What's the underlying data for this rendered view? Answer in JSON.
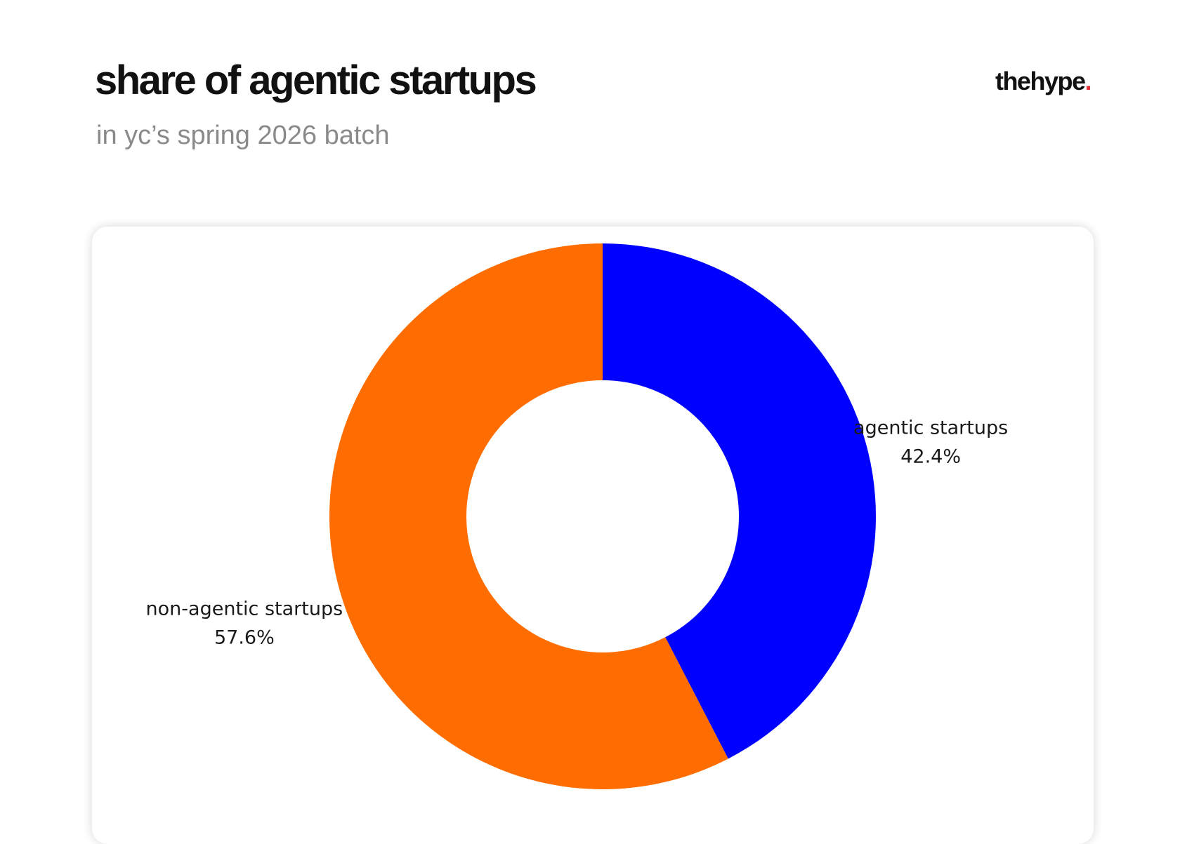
{
  "header": {
    "title": "share of agentic startups",
    "subtitle": "in yc’s spring 2026 batch",
    "brand": "thehype",
    "brand_dot": "."
  },
  "colors": {
    "brand_dot": "#e0303a"
  },
  "chart_data": {
    "type": "pie",
    "variant": "donut",
    "start_angle": "12 o'clock",
    "direction": "clockwise",
    "slices": [
      {
        "label": "agentic startups",
        "value": 42.4,
        "value_text": "42.4%",
        "color": "#0000ff"
      },
      {
        "label": "non-agentic startups",
        "value": 57.6,
        "value_text": "57.6%",
        "color": "#ff6d00"
      }
    ],
    "legend": "none"
  }
}
